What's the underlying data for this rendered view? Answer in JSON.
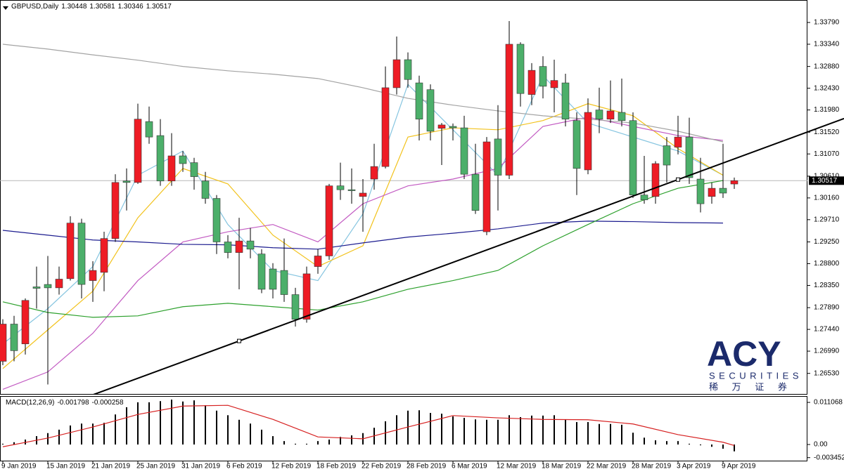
{
  "chart_data": [
    {
      "type": "candlestick",
      "title": "GBPUSD,Daily",
      "categories": [
        "9 Jan 2019",
        null,
        null,
        null,
        "15 Jan 2019",
        null,
        null,
        null,
        "21 Jan 2019",
        null,
        null,
        null,
        "25 Jan 2019",
        null,
        null,
        null,
        "31 Jan 2019",
        null,
        null,
        null,
        "6 Feb 2019",
        null,
        null,
        null,
        "12 Feb 2019",
        null,
        null,
        null,
        "18 Feb 2019",
        null,
        null,
        null,
        "22 Feb 2019",
        null,
        null,
        null,
        "28 Feb 2019",
        null,
        null,
        null,
        "6 Mar 2019",
        null,
        null,
        null,
        "12 Mar 2019",
        null,
        null,
        null,
        "18 Mar 2019",
        null,
        null,
        null,
        "22 Mar 2019",
        null,
        null,
        null,
        "28 Mar 2019",
        null,
        null,
        null,
        "3 Apr 2019",
        null,
        null,
        null,
        "9 Apr 2019",
        null
      ],
      "open": [
        1.2678,
        1.2755,
        1.2714,
        1.2832,
        1.2837,
        1.283,
        1.2849,
        1.2964,
        1.2845,
        1.2862,
        1.2932,
        1.3051,
        1.3048,
        1.3174,
        1.3145,
        1.3051,
        1.3103,
        1.3089,
        1.3051,
        1.3015,
        1.2925,
        1.2903,
        1.2927,
        1.29,
        1.2869,
        1.2866,
        1.2816,
        1.2765,
        1.2874,
        1.2896,
        1.3041,
        1.3033,
        1.3019,
        1.3055,
        1.3081,
        1.3244,
        1.3302,
        1.3254,
        1.324,
        1.316,
        1.3164,
        1.3161,
        1.3065,
        1.2946,
        1.3138,
        1.3063,
        1.3334,
        1.323,
        1.3288,
        1.3244,
        1.3254,
        1.3176,
        1.3074,
        1.3198,
        1.3179,
        1.3193,
        1.3176,
        1.3022,
        1.3019,
        1.3124,
        1.3121,
        1.3142,
        1.3055,
        1.3019,
        1.3036,
        1.30448
      ],
      "high": [
        1.2765,
        1.2772,
        1.2808,
        1.2874,
        1.2896,
        1.2874,
        1.2978,
        1.2973,
        1.2885,
        1.2946,
        1.3065,
        1.3077,
        1.3211,
        1.3205,
        1.3179,
        1.315,
        1.3113,
        1.3099,
        1.307,
        1.3022,
        1.2939,
        1.2975,
        1.2954,
        1.291,
        1.2881,
        1.2932,
        1.283,
        1.2874,
        1.291,
        1.3045,
        1.3089,
        1.3077,
        1.3055,
        1.3128,
        1.3288,
        1.335,
        1.3317,
        1.3269,
        1.3251,
        1.3171,
        1.317,
        1.3186,
        1.3128,
        1.3142,
        1.3208,
        1.3382,
        1.3338,
        1.3295,
        1.3309,
        1.3302,
        1.3273,
        1.3193,
        1.3222,
        1.3244,
        1.3259,
        1.3263,
        1.3193,
        1.3103,
        1.3092,
        1.3142,
        1.3186,
        1.3182,
        1.3099,
        1.3048,
        1.3128,
        1.30581
      ],
      "low": [
        1.267,
        1.2678,
        1.2692,
        1.2787,
        1.263,
        1.2816,
        1.2845,
        1.2808,
        1.2801,
        1.2823,
        1.2925,
        1.299,
        1.3045,
        1.3128,
        1.3041,
        1.3041,
        1.307,
        1.3033,
        1.3004,
        1.29,
        1.2891,
        1.2827,
        1.2891,
        1.2819,
        1.2808,
        1.2801,
        1.275,
        1.2758,
        1.2859,
        1.2888,
        1.3012,
        1.3004,
        1.2946,
        1.3033,
        1.3077,
        1.323,
        1.3244,
        1.3135,
        1.3135,
        1.3084,
        1.3135,
        1.3055,
        1.2983,
        1.2939,
        1.299,
        1.3055,
        1.3205,
        1.3208,
        1.3222,
        1.3193,
        1.3164,
        1.3022,
        1.3065,
        1.315,
        1.3171,
        1.3164,
        1.3016,
        1.3004,
        1.3004,
        1.3048,
        1.3106,
        1.3045,
        1.2986,
        1.3004,
        1.3016,
        1.30346
      ],
      "close": [
        1.2755,
        1.27,
        1.2804,
        1.2829,
        1.283,
        1.2848,
        1.2964,
        1.2837,
        1.2866,
        1.2932,
        1.3048,
        1.3048,
        1.3179,
        1.3142,
        1.3051,
        1.3103,
        1.3087,
        1.306,
        1.3015,
        1.2925,
        1.2903,
        1.2927,
        1.291,
        1.2827,
        1.2827,
        1.2816,
        1.2765,
        1.2859,
        1.2896,
        1.3041,
        1.3033,
        1.3031,
        1.3026,
        1.3081,
        1.3244,
        1.3302,
        1.3261,
        1.3179,
        1.3154,
        1.3167,
        1.3161,
        1.3065,
        1.299,
        1.3132,
        1.3063,
        1.3334,
        1.3232,
        1.328,
        1.3247,
        1.3259,
        1.3179,
        1.3077,
        1.3193,
        1.3179,
        1.3196,
        1.3176,
        1.3022,
        1.3012,
        1.3087,
        1.3084,
        1.3142,
        1.3058,
        1.3004,
        1.3036,
        1.3026,
        1.30517
      ],
      "up_color": "#ee1c25",
      "down_color": "#4caf6a",
      "overlays": [
        {
          "color": "#86c5e0",
          "values": [
            1.2714,
            1.2787,
            1.2874,
            1.3063,
            1.3113,
            1.2961,
            1.2866,
            1.2845,
            1.2983,
            1.3251,
            1.3157,
            1.3063,
            1.3269,
            1.3171,
            1.3142,
            1.3113,
            1.3063
          ]
        },
        {
          "color": "#f2c21b",
          "values": [
            1.2663,
            1.2743,
            1.2823,
            1.2975,
            1.3077,
            1.3045,
            1.2939,
            1.2874,
            1.2917,
            1.3142,
            1.3161,
            1.3157,
            1.3176,
            1.3211,
            1.3186,
            1.3118,
            1.3063
          ]
        },
        {
          "color": "#c25ac2",
          "values": [
            1.262,
            1.2656,
            1.2736,
            1.2845,
            1.2925,
            1.2946,
            1.2961,
            1.2925,
            1.3004,
            1.3041,
            1.3055,
            1.3077,
            1.3164,
            1.3183,
            1.3164,
            1.3145,
            1.3135
          ]
        },
        {
          "color": "#a3a3a3",
          "values": [
            1.3334,
            1.3324,
            1.3312,
            1.3301,
            1.3288,
            1.3279,
            1.3272,
            1.3263,
            1.3244,
            1.3222,
            1.3208,
            1.3196,
            1.3186,
            1.3179,
            1.3171,
            1.3154,
            1.3132
          ]
        },
        {
          "color": "#1c1c8f",
          "values": [
            1.2949,
            1.2939,
            1.2929,
            1.2925,
            1.292,
            1.2919,
            1.2913,
            1.291,
            1.2923,
            1.2935,
            1.2943,
            1.2952,
            1.2964,
            1.2968,
            1.2967,
            1.2965,
            1.2964
          ]
        },
        {
          "color": "#2ca02c",
          "values": [
            1.2801,
            1.2779,
            1.2769,
            1.2772,
            1.2791,
            1.2798,
            1.2791,
            1.2784,
            1.2801,
            1.2827,
            1.2845,
            1.2866,
            1.2917,
            1.2961,
            1.3004,
            1.3036,
            1.3052
          ]
        }
      ],
      "trendline": {
        "color": "#000000",
        "values": [
          1.272,
          1.3054
        ]
      },
      "ylim": [
        1.2609,
        1.34255
      ],
      "yticks": [
        {
          "value": 1.3379,
          "label": "1.33790"
        },
        {
          "value": 1.3334,
          "label": "1.33340"
        },
        {
          "value": 1.3288,
          "label": "1.32880"
        },
        {
          "value": 1.3243,
          "label": "1.32430"
        },
        {
          "value": 1.3198,
          "label": "1.31980"
        },
        {
          "value": 1.3152,
          "label": "1.31520"
        },
        {
          "value": 1.3107,
          "label": "1.31070"
        },
        {
          "value": 1.3061,
          "label": "1.30610"
        },
        {
          "value": 1.3016,
          "label": "1.30160"
        },
        {
          "value": 1.2971,
          "label": "1.29710"
        },
        {
          "value": 1.2925,
          "label": "1.29250"
        },
        {
          "value": 1.288,
          "label": "1.28800"
        },
        {
          "value": 1.2835,
          "label": "1.28350"
        },
        {
          "value": 1.2789,
          "label": "1.27890"
        },
        {
          "value": 1.2744,
          "label": "1.27440"
        },
        {
          "value": 1.2699,
          "label": "1.26990"
        },
        {
          "value": 1.2653,
          "label": "1.26530"
        }
      ],
      "logo": {
        "name": "ACY",
        "tagline": "SECURITIES",
        "local_name": "稀 万 证 券"
      }
    },
    {
      "type": "bar",
      "title": "MACD(12,26,9)",
      "color": "#000000",
      "values": [
        0.0002,
        0.0006,
        0.0013,
        0.0022,
        0.003,
        0.0039,
        0.005,
        0.0055,
        0.0055,
        0.0057,
        0.0079,
        0.0098,
        0.0111,
        0.0111,
        0.0114,
        0.0118,
        0.0113,
        0.0116,
        0.0103,
        0.0089,
        0.0077,
        0.0065,
        0.0055,
        0.0039,
        0.0022,
        0.0009,
        0.0002,
        0.0002,
        0.0009,
        0.0013,
        0.002,
        0.0024,
        0.003,
        0.0044,
        0.0061,
        0.0077,
        0.0089,
        0.009,
        0.0083,
        0.0081,
        0.0074,
        0.007,
        0.0066,
        0.0065,
        0.0065,
        0.0077,
        0.0072,
        0.0076,
        0.0076,
        0.0077,
        0.0065,
        0.0059,
        0.0059,
        0.0054,
        0.0054,
        0.0052,
        0.0031,
        0.0018,
        0.0011,
        0.0009,
        0.0009,
        0.0002,
        -0.0002,
        -0.0006,
        -0.0011,
        -0.001798
      ],
      "signal": {
        "color": "#d62020",
        "values": [
          -0.0006,
          0.0017,
          0.0046,
          0.0079,
          0.0101,
          0.0103,
          0.0066,
          0.002,
          0.0015,
          0.0046,
          0.0076,
          0.007,
          0.0066,
          0.0065,
          0.0054,
          0.0026,
          0.0006
        ],
        "last": -0.000258
      },
      "ylim": [
        -0.00406,
        0.01255
      ],
      "yticks": [
        0.011068,
        {
          "value": 0,
          "label": "0.00"
        },
        -0.003452
      ]
    }
  ]
}
